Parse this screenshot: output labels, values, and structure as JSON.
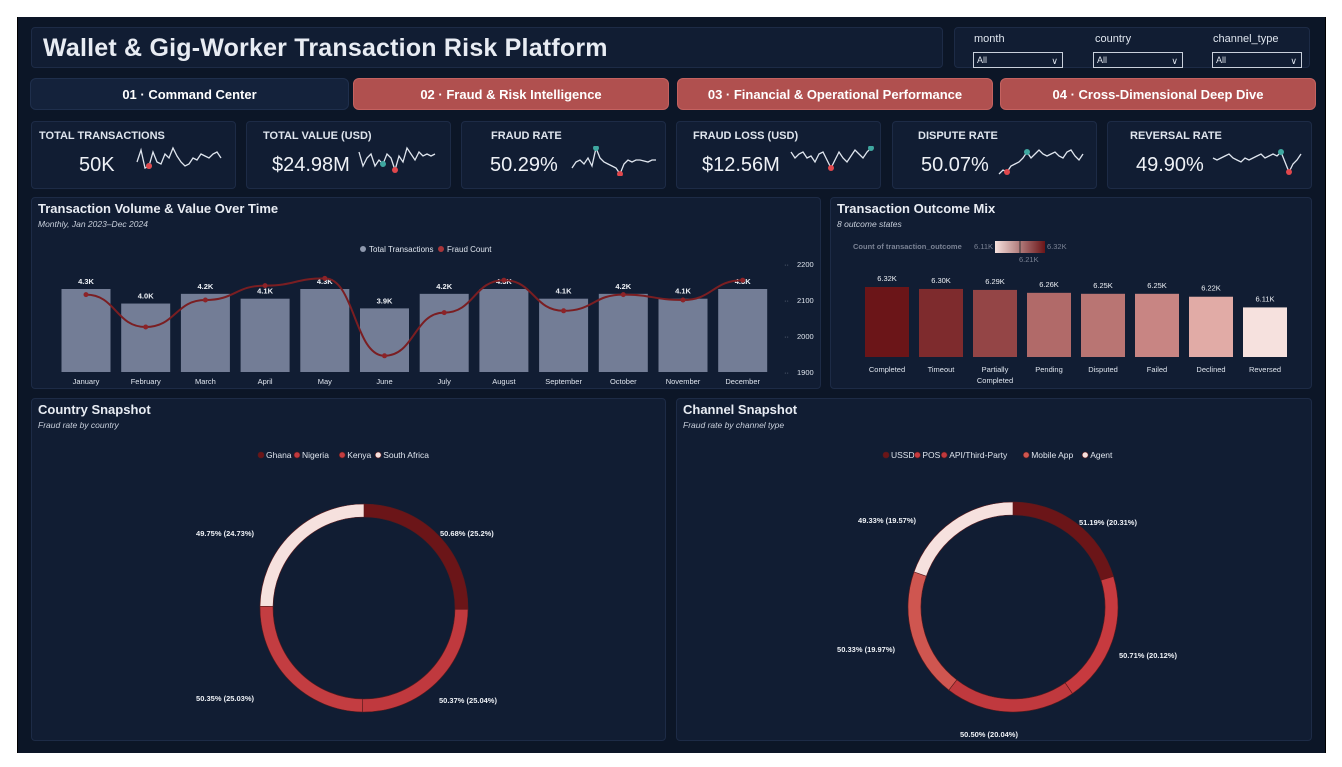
{
  "header": {
    "title": "Wallet & Gig-Worker Transaction Risk Platform"
  },
  "filters": [
    {
      "label": "month",
      "value": "All"
    },
    {
      "label": "country",
      "value": "All"
    },
    {
      "label": "channel_type",
      "value": "All"
    }
  ],
  "tabs": [
    {
      "label": "01 · Command Center",
      "active": true
    },
    {
      "label": "02 · Fraud & Risk Intelligence",
      "active": false
    },
    {
      "label": "03 · Financial & Operational Performance",
      "active": false
    },
    {
      "label": "04 · Cross-Dimensional Deep Dive",
      "active": false
    }
  ],
  "kpis": [
    {
      "label": "TOTAL TRANSACTIONS",
      "value": "50K"
    },
    {
      "label": "TOTAL VALUE (USD)",
      "value": "$24.98M"
    },
    {
      "label": "FRAUD RATE",
      "value": "50.29%"
    },
    {
      "label": "FRAUD LOSS (USD)",
      "value": "$12.56M"
    },
    {
      "label": "DISPUTE RATE",
      "value": "50.07%"
    },
    {
      "label": "REVERSAL RATE",
      "value": "49.90%"
    }
  ],
  "colors": {
    "bar": "#737d96",
    "line": "#7a1e22",
    "accent_tab": "#b0504f",
    "spark_high": "#3fa7a0",
    "spark_low": "#e0474c"
  },
  "volume": {
    "title": "Transaction Volume & Value Over Time",
    "subtitle": "Monthly, Jan 2023–Dec 2024",
    "legend": [
      "Total Transactions",
      "Fraud Count"
    ]
  },
  "outcome": {
    "title": "Transaction Outcome Mix",
    "subtitle": "8 outcome states",
    "gradient_label": "Count of transaction_outcome",
    "gradient_min": "6.11K",
    "gradient_mid": "6.21K",
    "gradient_max": "6.32K"
  },
  "country": {
    "title": "Country Snapshot",
    "subtitle": "Fraud rate by country"
  },
  "channel": {
    "title": "Channel Snapshot",
    "subtitle": "Fraud rate by channel type"
  },
  "chart_data": [
    {
      "type": "bar",
      "categories": [
        "January",
        "February",
        "March",
        "April",
        "May",
        "June",
        "July",
        "August",
        "September",
        "October",
        "November",
        "December"
      ],
      "series": [
        {
          "name": "Total Transactions",
          "type": "bar",
          "values": [
            4300,
            4000,
            4200,
            4100,
            4300,
            3900,
            4200,
            4300,
            4100,
            4200,
            4100,
            4300
          ],
          "labels": [
            "4.3K",
            "4.0K",
            "4.2K",
            "4.1K",
            "4.3K",
            "3.9K",
            "4.2K",
            "4.3K",
            "4.1K",
            "4.2K",
            "4.1K",
            "4.3K"
          ]
        },
        {
          "name": "Fraud Count",
          "type": "line",
          "axis": "right",
          "values": [
            2115,
            2025,
            2100,
            2140,
            2160,
            1945,
            2065,
            2155,
            2070,
            2115,
            2100,
            2155
          ]
        }
      ],
      "y2ticks": [
        1900,
        2000,
        2100,
        2200
      ],
      "y2lim": [
        1900,
        2200
      ],
      "legend": "top-center"
    },
    {
      "type": "bar",
      "categories": [
        "Completed",
        "Timeout",
        "Partially Completed",
        "Pending",
        "Disputed",
        "Failed",
        "Declined",
        "Reversed"
      ],
      "values": [
        6320,
        6300,
        6290,
        6260,
        6250,
        6250,
        6220,
        6110
      ],
      "labels": [
        "6.32K",
        "6.30K",
        "6.29K",
        "6.26K",
        "6.25K",
        "6.25K",
        "6.22K",
        "6.11K"
      ],
      "colors": [
        "#6b1518",
        "#7e2b2d",
        "#944546",
        "#b16a69",
        "#b97573",
        "#c88583",
        "#e1aba6",
        "#f6e1de"
      ]
    },
    {
      "type": "pie",
      "categories": [
        "Ghana",
        "Nigeria",
        "Kenya",
        "South Africa"
      ],
      "values": [
        25.2,
        25.04,
        25.03,
        24.73
      ],
      "labels": [
        "50.68% (25.2%)",
        "50.37% (25.04%)",
        "50.35% (25.03%)",
        "49.75% (24.73%)"
      ],
      "colors": [
        "#6b1518",
        "#c0393e",
        "#c33d41",
        "#f6e1de"
      ],
      "legend": "top-center"
    },
    {
      "type": "pie",
      "categories": [
        "USSD",
        "POS",
        "API/Third-Party",
        "Mobile App",
        "Agent"
      ],
      "values": [
        20.31,
        20.12,
        20.04,
        19.97,
        19.57
      ],
      "labels": [
        "51.19% (20.31%)",
        "50.71% (20.12%)",
        "50.50% (20.04%)",
        "50.33% (19.97%)",
        "49.33% (19.57%)"
      ],
      "colors": [
        "#6b1518",
        "#c73a3f",
        "#c0393e",
        "#cf5650",
        "#f6e1de"
      ],
      "legend": "top-center"
    }
  ]
}
